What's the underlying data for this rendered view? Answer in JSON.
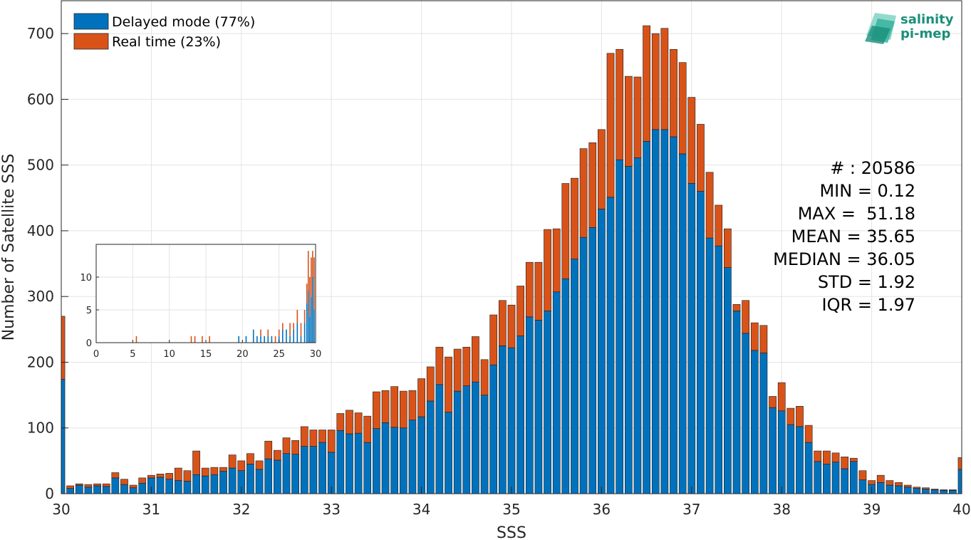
{
  "colors": {
    "delayed": "#0072BD",
    "realtime": "#D95319",
    "grid": "#e3e3e3",
    "axis": "#262626"
  },
  "logo": {
    "line1": "salinity",
    "line2": "pi-mep",
    "icon": "wave-stack-logo"
  },
  "legend": {
    "placement": "top-left",
    "items": [
      {
        "label": "Delayed mode (77%)",
        "color": "#0072BD"
      },
      {
        "label": "Real time (23%)",
        "color": "#D95319"
      }
    ]
  },
  "stats": [
    "# : 20586",
    "MIN = 0.12",
    "MAX =  51.18",
    "MEAN = 35.65",
    "MEDIAN = 36.05",
    "STD = 1.92",
    "IQR = 1.97"
  ],
  "chart_data": [
    {
      "type": "bar",
      "stacked": true,
      "xlabel": "SSS",
      "ylabel": "Number of Satellite SSS",
      "xlim": [
        30,
        40
      ],
      "ylim": [
        0,
        750
      ],
      "xticks": [
        30,
        31,
        32,
        33,
        34,
        35,
        36,
        37,
        38,
        39,
        40
      ],
      "yticks": [
        0,
        100,
        200,
        300,
        400,
        500,
        600,
        700
      ],
      "grid": true,
      "bin_width": 0.1,
      "x": [
        30.0,
        30.1,
        30.2,
        30.3,
        30.4,
        30.5,
        30.6,
        30.7,
        30.8,
        30.9,
        31.0,
        31.1,
        31.2,
        31.3,
        31.4,
        31.5,
        31.6,
        31.7,
        31.8,
        31.9,
        32.0,
        32.1,
        32.2,
        32.3,
        32.4,
        32.5,
        32.6,
        32.7,
        32.8,
        32.9,
        33.0,
        33.1,
        33.2,
        33.3,
        33.4,
        33.5,
        33.6,
        33.7,
        33.8,
        33.9,
        34.0,
        34.1,
        34.2,
        34.3,
        34.4,
        34.5,
        34.6,
        34.7,
        34.8,
        34.9,
        35.0,
        35.1,
        35.2,
        35.3,
        35.4,
        35.5,
        35.6,
        35.7,
        35.8,
        35.9,
        36.0,
        36.1,
        36.2,
        36.3,
        36.4,
        36.5,
        36.6,
        36.7,
        36.8,
        36.9,
        37.0,
        37.1,
        37.2,
        37.3,
        37.4,
        37.5,
        37.6,
        37.7,
        37.8,
        37.9,
        38.0,
        38.1,
        38.2,
        38.3,
        38.4,
        38.5,
        38.6,
        38.7,
        38.8,
        38.9,
        39.0,
        39.1,
        39.2,
        39.3,
        39.4,
        39.5,
        39.6,
        39.7,
        39.8,
        39.9,
        40.0
      ],
      "series": [
        {
          "name": "Delayed mode (77%)",
          "values": [
            174,
            8,
            13,
            10,
            12,
            11,
            24,
            14,
            9,
            16,
            24,
            25,
            22,
            20,
            19,
            29,
            27,
            29,
            34,
            39,
            35,
            45,
            37,
            53,
            51,
            61,
            60,
            72,
            72,
            78,
            63,
            96,
            91,
            92,
            78,
            99,
            108,
            101,
            100,
            112,
            117,
            141,
            166,
            124,
            156,
            164,
            170,
            150,
            196,
            225,
            222,
            240,
            269,
            264,
            278,
            307,
            327,
            357,
            390,
            405,
            433,
            451,
            508,
            498,
            511,
            536,
            554,
            554,
            543,
            517,
            472,
            460,
            389,
            377,
            344,
            278,
            244,
            218,
            214,
            131,
            126,
            105,
            102,
            78,
            49,
            45,
            48,
            38,
            49,
            21,
            14,
            17,
            13,
            12,
            10,
            8,
            7,
            6,
            5,
            5,
            37
          ]
        },
        {
          "name": "Real time (23%)",
          "values": [
            96,
            4,
            2,
            4,
            3,
            4,
            8,
            8,
            4,
            8,
            4,
            5,
            9,
            19,
            16,
            36,
            12,
            11,
            6,
            20,
            15,
            16,
            13,
            27,
            15,
            24,
            21,
            30,
            25,
            19,
            34,
            26,
            36,
            31,
            40,
            56,
            49,
            62,
            56,
            45,
            58,
            52,
            57,
            84,
            64,
            59,
            69,
            54,
            76,
            69,
            65,
            76,
            83,
            88,
            124,
            96,
            145,
            123,
            135,
            129,
            121,
            219,
            168,
            137,
            123,
            176,
            146,
            154,
            133,
            139,
            131,
            102,
            100,
            62,
            59,
            10,
            50,
            42,
            42,
            17,
            43,
            25,
            31,
            26,
            16,
            20,
            14,
            18,
            5,
            14,
            6,
            11,
            7,
            5,
            3,
            2,
            2,
            1,
            1,
            1,
            18
          ]
        }
      ]
    },
    {
      "type": "bar",
      "stacked": true,
      "inset": true,
      "xlim": [
        0,
        30
      ],
      "ylim": [
        0,
        15
      ],
      "xticks": [
        0,
        5,
        10,
        15,
        20,
        25,
        30
      ],
      "yticks": [
        0,
        5,
        10
      ],
      "x": [
        5.5,
        13,
        13.5,
        14.5,
        15.5,
        19.5,
        20.5,
        21.5,
        22,
        22.5,
        23,
        23.5,
        24,
        24.5,
        25,
        25.5,
        26,
        26.5,
        27,
        27.5,
        28,
        28.5,
        28.8,
        29,
        29.2,
        29.4,
        29.6,
        29.8
      ],
      "series": [
        {
          "name": "Delayed mode (77%)",
          "values": [
            0,
            0,
            0,
            0,
            0,
            1,
            1,
            2,
            1,
            1,
            1,
            1,
            1,
            0,
            1,
            2,
            2,
            1,
            2,
            3,
            1,
            3,
            6,
            8,
            4,
            7,
            10,
            5
          ]
        },
        {
          "name": "Real time (23%)",
          "values": [
            1,
            1,
            1,
            1,
            1,
            0,
            0,
            0,
            0,
            1,
            0,
            1,
            0,
            1,
            1,
            1,
            0,
            2,
            1,
            2,
            2,
            2,
            3,
            6,
            6,
            6,
            4,
            8
          ]
        }
      ]
    }
  ]
}
